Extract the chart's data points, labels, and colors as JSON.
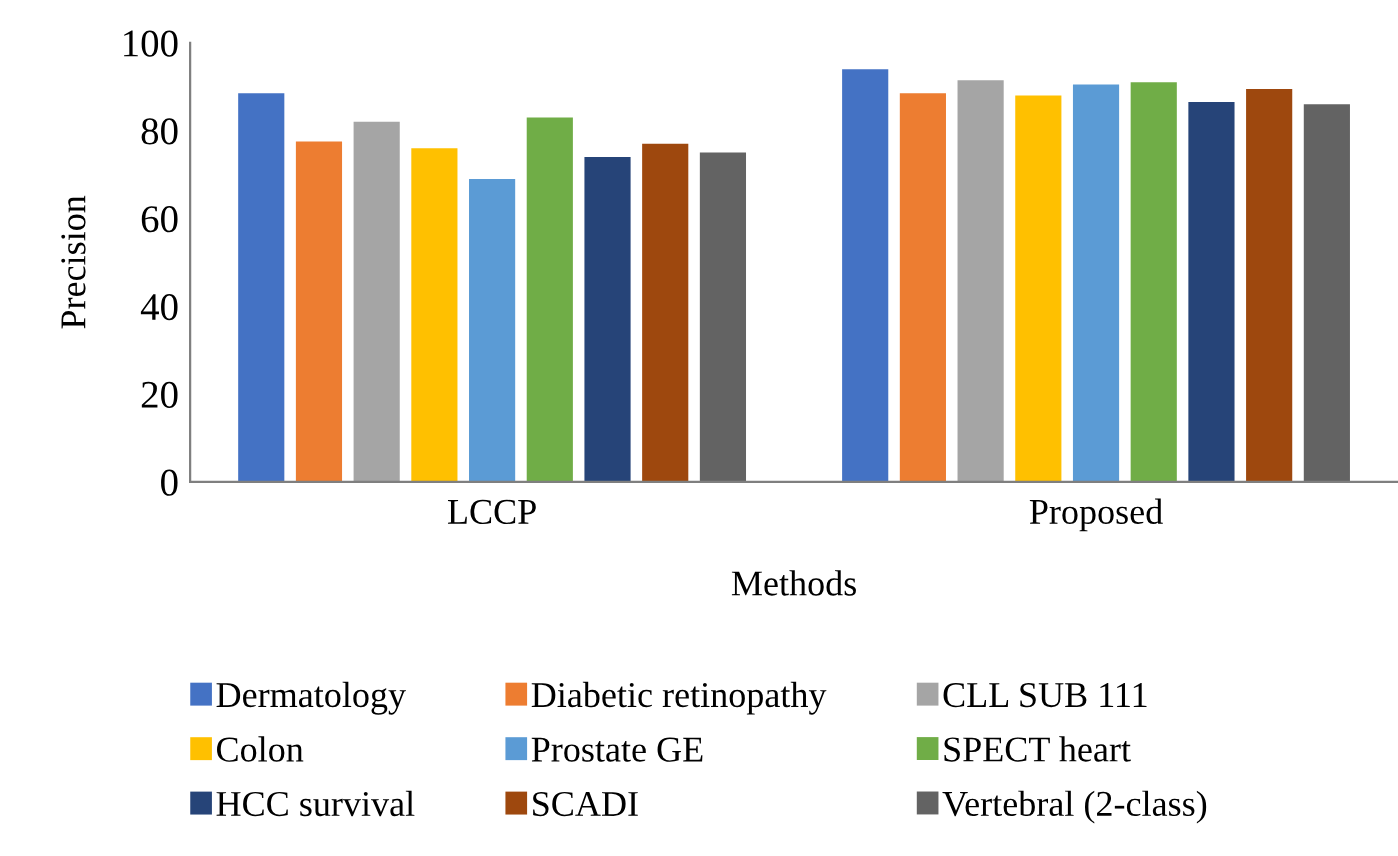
{
  "chart_data": {
    "type": "bar",
    "xlabel": "Methods",
    "ylabel": "Precision",
    "categories": [
      "LCCP",
      "Proposed"
    ],
    "series": [
      {
        "name": "Dermatology",
        "color": "#4472c4",
        "values": [
          88.5,
          94
        ]
      },
      {
        "name": "Diabetic retinopathy",
        "color": "#ed7d31",
        "values": [
          77.5,
          88.5
        ]
      },
      {
        "name": "CLL SUB 111",
        "color": "#a5a5a5",
        "values": [
          82,
          91.5
        ]
      },
      {
        "name": "Colon",
        "color": "#ffc000",
        "values": [
          76,
          88
        ]
      },
      {
        "name": "Prostate GE",
        "color": "#5b9bd5",
        "values": [
          69,
          90.5
        ]
      },
      {
        "name": "SPECT heart",
        "color": "#70ad47",
        "values": [
          83,
          91
        ]
      },
      {
        "name": "HCC survival",
        "color": "#264478",
        "values": [
          74,
          86.5
        ]
      },
      {
        "name": "SCADI",
        "color": "#9e480e",
        "values": [
          77,
          89.5
        ]
      },
      {
        "name": "Vertebral (2-class)",
        "color": "#636363",
        "values": [
          75,
          86
        ]
      }
    ],
    "ylim": [
      0,
      100
    ],
    "yticks": [
      0,
      20,
      40,
      60,
      80,
      100
    ],
    "grid": false,
    "legend": "bottom"
  }
}
